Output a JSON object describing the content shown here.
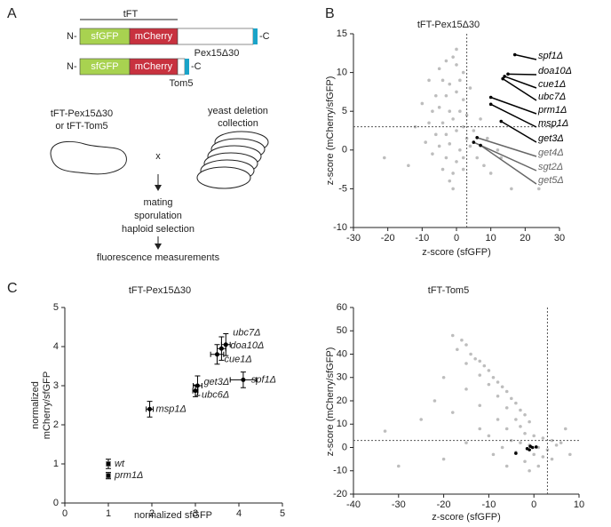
{
  "panel_labels": [
    "A",
    "B",
    "C"
  ],
  "diagram": {
    "tft": "tFT",
    "construct1": {
      "n": "N-",
      "gfp": "sfGFP",
      "cherry": "mCherry",
      "target": "Pex15Δ30",
      "c": "-C"
    },
    "construct2": {
      "n": "N-",
      "gfp": "sfGFP",
      "cherry": "mCherry",
      "target": "Tom5",
      "c": "-C"
    },
    "strain": [
      "tFT-Pex15Δ30",
      "or tFT-Tom5"
    ],
    "library": [
      "yeast deletion",
      "collection"
    ],
    "cross": "x",
    "steps": [
      "mating",
      "sporulation",
      "haploid selection"
    ],
    "result": "fluorescence measurements"
  },
  "chart_data": [
    {
      "type": "scatter",
      "title": "tFT-Pex15Δ30",
      "x_label": "z-score (sfGFP)",
      "y_label": "z-score (mCherry/sfGFP)",
      "xlim": [
        -30,
        30
      ],
      "ylim": [
        -10,
        15
      ],
      "xticks": [
        -30,
        -20,
        -10,
        0,
        10,
        20,
        30
      ],
      "yticks": [
        -10,
        -5,
        0,
        5,
        10,
        15
      ],
      "threshold_x": 3,
      "threshold_y": 3,
      "color": "#bdbdbd",
      "x": [
        -5,
        -3,
        -1,
        0,
        -4,
        -2,
        1,
        -6,
        -3,
        0,
        2,
        -7,
        -5,
        -2,
        1,
        3,
        -8,
        -4,
        -1,
        2,
        -6,
        -3,
        0,
        3,
        -9,
        -5,
        -2,
        1,
        4,
        -7,
        -3,
        0,
        2,
        -4,
        -1,
        2,
        -2,
        6,
        8,
        10,
        13,
        16,
        24,
        -21,
        -12,
        -14,
        7,
        5,
        -10,
        -8,
        2,
        4,
        -1,
        0,
        9,
        12
      ],
      "values": [
        10.5,
        11.5,
        12,
        11,
        9,
        8.5,
        9,
        7,
        7,
        7.5,
        6.5,
        5,
        5.5,
        5,
        5,
        4.5,
        3.5,
        3.5,
        4,
        3,
        2,
        2,
        2.5,
        1.5,
        1,
        0.5,
        0.8,
        0,
        0.5,
        -0.5,
        -1,
        -1.5,
        -1,
        -2.5,
        -3,
        -2.5,
        -4,
        -1,
        -2,
        -3,
        -1,
        -5,
        -5,
        -1,
        3,
        -2,
        4,
        2.5,
        6,
        9,
        10,
        8,
        -5,
        13,
        1.5,
        0
      ],
      "labeled_points": {
        "labels": [
          "spf1Δ",
          "doa10Δ",
          "cue1Δ",
          "ubc7Δ",
          "prm1Δ",
          "msp1Δ",
          "get3Δ",
          "get4Δ",
          "sgt2Δ",
          "get5Δ"
        ],
        "x": [
          17,
          15,
          14,
          13.5,
          10,
          10,
          13,
          6,
          5,
          7
        ],
        "y": [
          12.3,
          9.8,
          9.5,
          9.2,
          6.8,
          5.9,
          3.7,
          1.6,
          1.0,
          0.6
        ],
        "colors": [
          "#000000",
          "#000000",
          "#000000",
          "#000000",
          "#000000",
          "#000000",
          "#000000",
          "#666666",
          "#666666",
          "#666666"
        ]
      }
    },
    {
      "type": "errorbar",
      "title": "tFT-Pex15Δ30",
      "x_label": "normalized sfGFP",
      "y_label": [
        "normalized",
        "mCherry/sfGFP"
      ],
      "xlim": [
        0,
        5
      ],
      "ylim": [
        0,
        5
      ],
      "xticks": [
        0,
        1,
        2,
        3,
        4,
        5
      ],
      "yticks": [
        0,
        1,
        2,
        3,
        4,
        5
      ],
      "color": "#000000",
      "labels": [
        "wt",
        "prm1Δ",
        "msp1Δ",
        "ubc6Δ",
        "get3Δ",
        "spf1Δ",
        "cue1Δ",
        "doa10Δ",
        "ubc7Δ"
      ],
      "x": [
        1,
        1,
        1.95,
        3.0,
        3.05,
        4.1,
        3.5,
        3.6,
        3.7
      ],
      "values": [
        1.0,
        0.7,
        2.4,
        2.87,
        3.0,
        3.15,
        3.8,
        3.95,
        4.05
      ],
      "xerr": [
        0.04,
        0.04,
        0.08,
        0.06,
        0.1,
        0.3,
        0.15,
        0.1,
        0.1
      ],
      "yerr": [
        0.12,
        0.08,
        0.2,
        0.15,
        0.25,
        0.2,
        0.25,
        0.3,
        0.28
      ]
    },
    {
      "type": "scatter",
      "title": "tFT-Tom5",
      "x_label": "z-score (sfGFP)",
      "y_label": "z-score (mCherry/sfGFP)",
      "xlim": [
        -40,
        10
      ],
      "ylim": [
        -20,
        60
      ],
      "xticks": [
        -40,
        -30,
        -20,
        -10,
        0,
        10
      ],
      "yticks": [
        -20,
        -10,
        0,
        10,
        20,
        30,
        40,
        50,
        60
      ],
      "threshold_x": 3,
      "threshold_y": 3,
      "color": "#bdbdbd",
      "x": [
        -18,
        -16,
        -15,
        -17,
        -14,
        -13,
        -12,
        -15,
        -11,
        -10,
        -12,
        -9,
        -8,
        -10,
        -7,
        -6,
        -8,
        -5,
        -4,
        -6,
        -3,
        -2,
        -4,
        -1,
        -3,
        -20,
        -22,
        -25,
        -18,
        -12,
        -15,
        -8,
        -6,
        -2,
        0,
        2,
        -5,
        -3,
        -1,
        1,
        3,
        5,
        -7,
        -4,
        0,
        2,
        -2,
        4,
        6,
        -10,
        -15,
        -20,
        -33,
        -30,
        8,
        -9,
        -12,
        1,
        -6,
        4,
        -1,
        7
      ],
      "values": [
        48,
        46,
        44,
        42,
        40,
        38,
        37,
        36,
        35,
        33,
        31,
        30,
        28,
        27,
        26,
        24,
        22,
        21,
        19,
        17,
        16,
        14,
        12,
        11,
        9,
        30,
        20,
        12,
        15,
        18,
        25,
        12,
        8,
        6,
        5,
        4,
        3,
        2,
        1,
        0,
        -1,
        1,
        0,
        -2,
        -3,
        -4,
        -6,
        -5,
        2,
        5,
        2,
        -5,
        7,
        -8,
        -3,
        -3,
        8,
        -8,
        -8,
        3,
        -10,
        8
      ],
      "highlight_color": "#000000",
      "highlight_x": [
        -4,
        -1.5,
        -0.8,
        -0.3,
        0.5,
        -1
      ],
      "highlight_values": [
        -2.5,
        -0.5,
        0.5,
        0,
        0.2,
        -1
      ]
    }
  ]
}
